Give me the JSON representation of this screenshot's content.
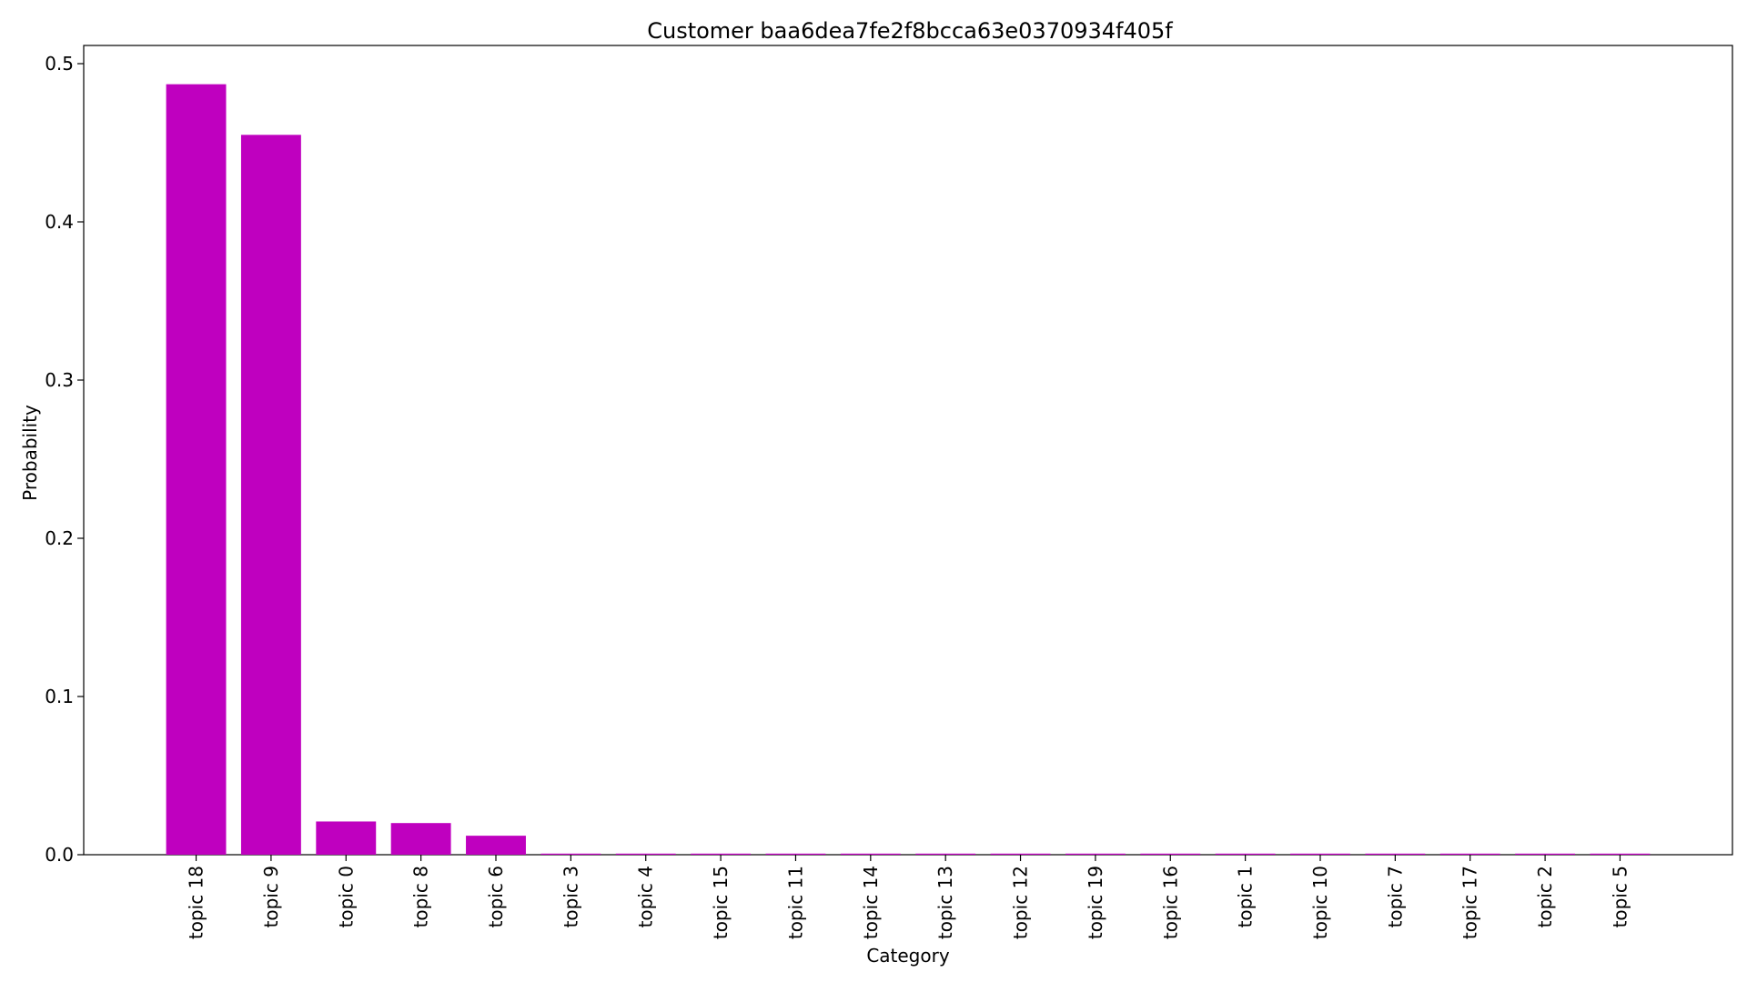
{
  "chart_data": {
    "type": "bar",
    "title": "Customer baa6dea7fe2f8bcca63e0370934f405f",
    "xlabel": "Category",
    "ylabel": "Probability",
    "categories": [
      "topic 18",
      "topic 9",
      "topic 0",
      "topic 8",
      "topic 6",
      "topic 3",
      "topic 4",
      "topic 15",
      "topic 11",
      "topic 14",
      "topic 13",
      "topic 12",
      "topic 19",
      "topic 16",
      "topic 1",
      "topic 10",
      "topic 7",
      "topic 17",
      "topic 2",
      "topic 5"
    ],
    "values": [
      0.487,
      0.455,
      0.021,
      0.02,
      0.012,
      0.0005,
      0.0005,
      0.0005,
      0.0005,
      0.0005,
      0.0005,
      0.0005,
      0.0005,
      0.0005,
      0.0005,
      0.0005,
      0.0005,
      0.0005,
      0.0005,
      0.0005
    ],
    "ylim": [
      0,
      0.5115
    ],
    "yticks": [
      0.0,
      0.1,
      0.2,
      0.3,
      0.4,
      0.5
    ],
    "ytick_labels": [
      "0.0",
      "0.1",
      "0.2",
      "0.3",
      "0.4",
      "0.5"
    ],
    "grid": false,
    "bar_color": "#bf00bf"
  }
}
